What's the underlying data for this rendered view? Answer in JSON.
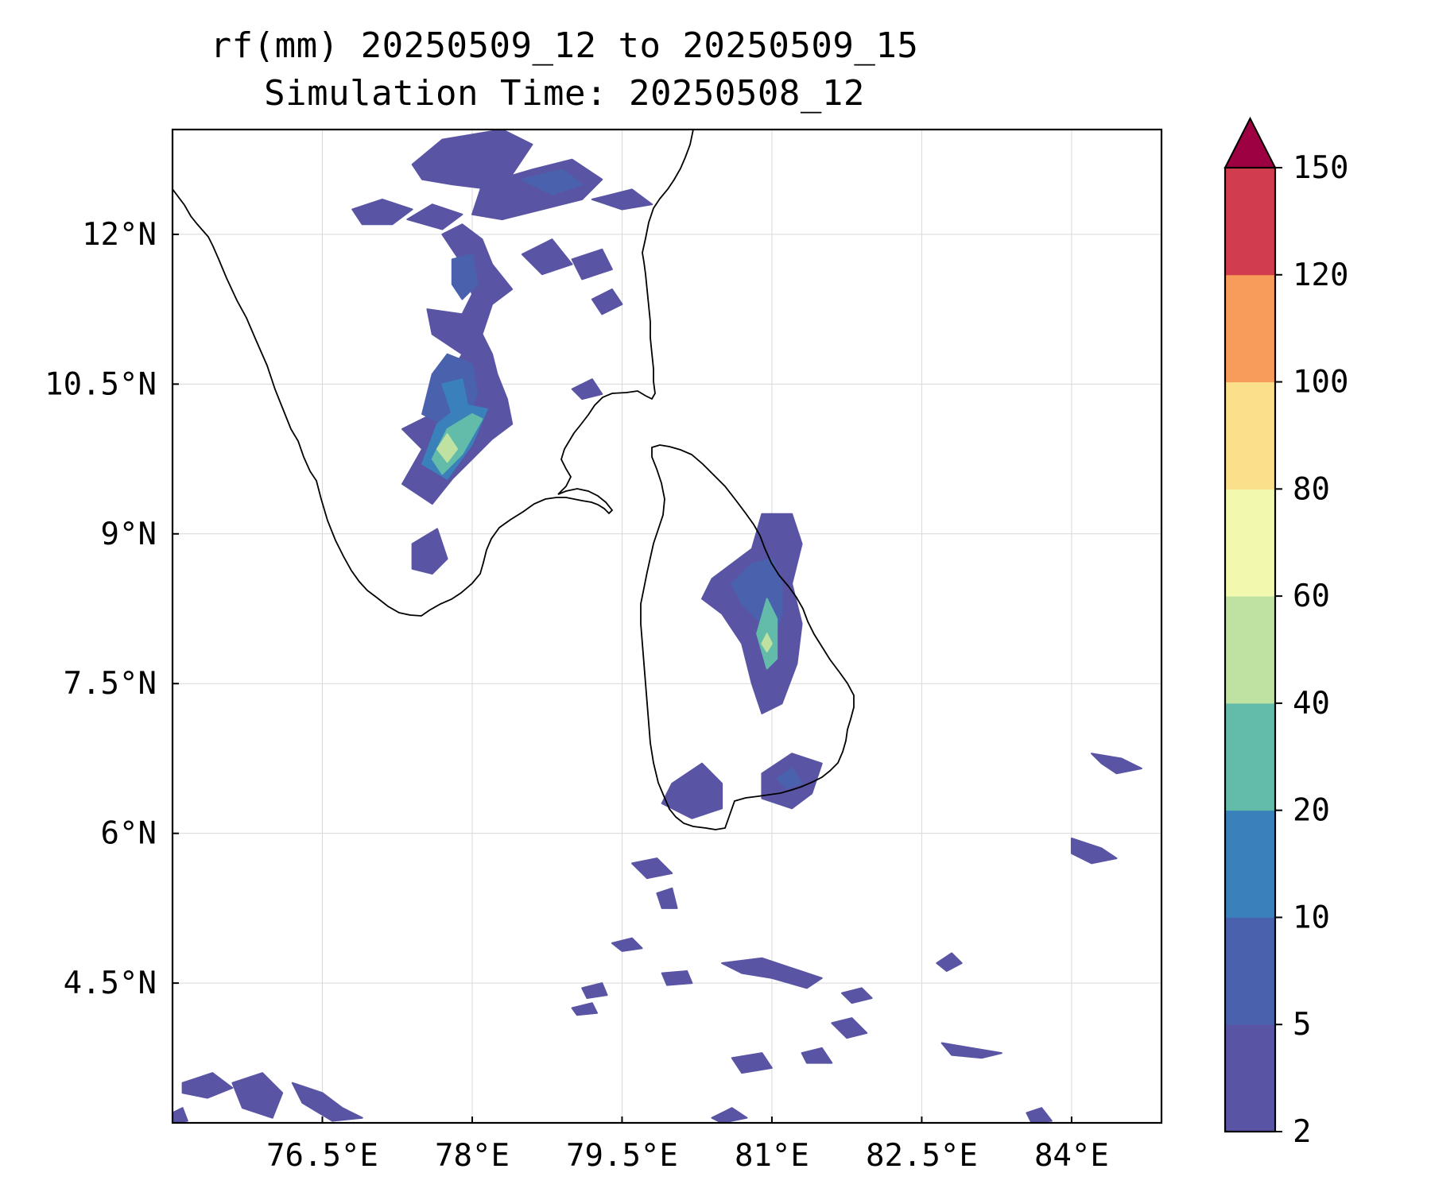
{
  "title": {
    "line1": "rf(mm) 20250509_12 to 20250509_15",
    "line2": "Simulation Time: 20250508_12"
  },
  "map": {
    "lon_range": [
      75.0,
      84.9
    ],
    "lat_range": [
      3.1,
      13.05
    ],
    "lon_ticks": [
      {
        "value": 76.5,
        "label": "76.5°E"
      },
      {
        "value": 78.0,
        "label": "78°E"
      },
      {
        "value": 79.5,
        "label": "79.5°E"
      },
      {
        "value": 81.0,
        "label": "81°E"
      },
      {
        "value": 82.5,
        "label": "82.5°E"
      },
      {
        "value": 84.0,
        "label": "84°E"
      }
    ],
    "lat_ticks": [
      {
        "value": 12.0,
        "label": "12°N"
      },
      {
        "value": 10.5,
        "label": "10.5°N"
      },
      {
        "value": 9.0,
        "label": "9°N"
      },
      {
        "value": 7.5,
        "label": "7.5°N"
      },
      {
        "value": 6.0,
        "label": "6°N"
      },
      {
        "value": 4.5,
        "label": "4.5°N"
      }
    ],
    "gridlines": true,
    "coastline_color": "#000000"
  },
  "colorbar": {
    "levels": [
      2,
      5,
      10,
      20,
      40,
      60,
      80,
      100,
      120,
      150
    ],
    "labels": [
      "2",
      "5",
      "10",
      "20",
      "40",
      "60",
      "80",
      "100",
      "120",
      "150"
    ],
    "colors": [
      "#5954a4",
      "#4a62ad",
      "#3a80ba",
      "#63bca9",
      "#bfe1a2",
      "#f2f8ae",
      "#fbdf8b",
      "#f89c5b",
      "#d23c4f"
    ],
    "extend_color": "#9e0142",
    "extend": "max"
  },
  "rain_cells": [
    {
      "level": 0,
      "points": [
        [
          77.4,
          12.7
        ],
        [
          77.7,
          12.95
        ],
        [
          78.3,
          13.05
        ],
        [
          78.6,
          12.9
        ],
        [
          78.4,
          12.6
        ],
        [
          78.2,
          12.45
        ],
        [
          77.8,
          12.5
        ],
        [
          77.5,
          12.55
        ]
      ]
    },
    {
      "level": 0,
      "points": [
        [
          78.1,
          12.5
        ],
        [
          78.6,
          12.65
        ],
        [
          79.0,
          12.75
        ],
        [
          79.3,
          12.55
        ],
        [
          79.1,
          12.35
        ],
        [
          78.7,
          12.25
        ],
        [
          78.3,
          12.15
        ],
        [
          78.0,
          12.2
        ]
      ]
    },
    {
      "level": 1,
      "points": [
        [
          78.5,
          12.55
        ],
        [
          78.9,
          12.65
        ],
        [
          79.1,
          12.5
        ],
        [
          78.8,
          12.4
        ]
      ]
    },
    {
      "level": 0,
      "points": [
        [
          76.8,
          12.25
        ],
        [
          77.1,
          12.35
        ],
        [
          77.4,
          12.25
        ],
        [
          77.2,
          12.1
        ],
        [
          76.9,
          12.1
        ]
      ]
    },
    {
      "level": 0,
      "points": [
        [
          77.35,
          12.15
        ],
        [
          77.6,
          12.3
        ],
        [
          77.9,
          12.2
        ],
        [
          77.7,
          12.05
        ]
      ]
    },
    {
      "level": 0,
      "points": [
        [
          79.2,
          12.35
        ],
        [
          79.6,
          12.45
        ],
        [
          79.8,
          12.3
        ],
        [
          79.5,
          12.25
        ]
      ]
    },
    {
      "level": 0,
      "points": [
        [
          78.5,
          11.8
        ],
        [
          78.8,
          11.95
        ],
        [
          79.0,
          11.7
        ],
        [
          78.7,
          11.6
        ]
      ]
    },
    {
      "level": 0,
      "points": [
        [
          79.0,
          11.75
        ],
        [
          79.3,
          11.85
        ],
        [
          79.4,
          11.65
        ],
        [
          79.1,
          11.55
        ]
      ]
    },
    {
      "level": 0,
      "points": [
        [
          79.2,
          11.35
        ],
        [
          79.4,
          11.45
        ],
        [
          79.5,
          11.3
        ],
        [
          79.3,
          11.2
        ]
      ]
    },
    {
      "level": 0,
      "points": [
        [
          79.0,
          10.45
        ],
        [
          79.2,
          10.55
        ],
        [
          79.3,
          10.4
        ],
        [
          79.1,
          10.35
        ]
      ]
    },
    {
      "level": 0,
      "points": [
        [
          77.7,
          12.0
        ],
        [
          77.9,
          11.7
        ],
        [
          78.0,
          11.4
        ],
        [
          77.9,
          11.2
        ],
        [
          77.55,
          11.25
        ],
        [
          77.6,
          11.0
        ],
        [
          77.9,
          10.8
        ],
        [
          77.75,
          10.55
        ],
        [
          77.6,
          10.2
        ],
        [
          77.3,
          10.05
        ],
        [
          77.5,
          9.85
        ],
        [
          77.3,
          9.5
        ],
        [
          77.6,
          9.3
        ],
        [
          77.8,
          9.55
        ],
        [
          78.0,
          9.75
        ],
        [
          78.2,
          9.95
        ],
        [
          78.4,
          10.1
        ],
        [
          78.35,
          10.35
        ],
        [
          78.25,
          10.6
        ],
        [
          78.2,
          10.8
        ],
        [
          78.1,
          11.0
        ],
        [
          78.2,
          11.3
        ],
        [
          78.4,
          11.45
        ],
        [
          78.2,
          11.7
        ],
        [
          78.1,
          11.95
        ],
        [
          77.9,
          12.1
        ]
      ]
    },
    {
      "level": 1,
      "points": [
        [
          77.8,
          11.75
        ],
        [
          78.0,
          11.8
        ],
        [
          78.05,
          11.5
        ],
        [
          77.9,
          11.35
        ],
        [
          77.8,
          11.5
        ]
      ]
    },
    {
      "level": 1,
      "points": [
        [
          77.6,
          10.6
        ],
        [
          77.75,
          10.8
        ],
        [
          78.0,
          10.7
        ],
        [
          78.05,
          10.4
        ],
        [
          77.95,
          10.15
        ],
        [
          77.7,
          10.1
        ],
        [
          77.5,
          10.2
        ]
      ]
    },
    {
      "level": 2,
      "points": [
        [
          77.7,
          10.5
        ],
        [
          77.9,
          10.55
        ],
        [
          77.95,
          10.3
        ],
        [
          77.8,
          10.2
        ]
      ]
    },
    {
      "level": 2,
      "points": [
        [
          77.5,
          9.7
        ],
        [
          77.65,
          10.1
        ],
        [
          77.9,
          10.3
        ],
        [
          78.15,
          10.25
        ],
        [
          78.0,
          9.9
        ],
        [
          77.75,
          9.55
        ]
      ]
    },
    {
      "level": 3,
      "points": [
        [
          77.6,
          9.75
        ],
        [
          77.75,
          10.05
        ],
        [
          78.0,
          10.2
        ],
        [
          78.1,
          10.15
        ],
        [
          77.9,
          9.8
        ],
        [
          77.7,
          9.6
        ]
      ]
    },
    {
      "level": 4,
      "points": [
        [
          77.65,
          9.85
        ],
        [
          77.75,
          10.0
        ],
        [
          77.85,
          9.85
        ],
        [
          77.75,
          9.72
        ]
      ]
    },
    {
      "level": 0,
      "points": [
        [
          77.4,
          8.9
        ],
        [
          77.65,
          9.05
        ],
        [
          77.75,
          8.75
        ],
        [
          77.6,
          8.6
        ],
        [
          77.4,
          8.65
        ]
      ]
    },
    {
      "level": 0,
      "points": [
        [
          80.4,
          8.55
        ],
        [
          80.8,
          8.85
        ],
        [
          80.9,
          9.2
        ],
        [
          81.2,
          9.2
        ],
        [
          81.3,
          8.9
        ],
        [
          81.2,
          8.5
        ],
        [
          81.3,
          8.1
        ],
        [
          81.25,
          7.7
        ],
        [
          81.1,
          7.3
        ],
        [
          80.9,
          7.2
        ],
        [
          80.8,
          7.5
        ],
        [
          80.7,
          7.9
        ],
        [
          80.5,
          8.2
        ],
        [
          80.3,
          8.35
        ]
      ]
    },
    {
      "level": 1,
      "points": [
        [
          80.6,
          8.5
        ],
        [
          80.8,
          8.7
        ],
        [
          81.0,
          8.75
        ],
        [
          81.1,
          8.5
        ],
        [
          81.1,
          8.2
        ],
        [
          81.0,
          7.9
        ],
        [
          80.9,
          8.1
        ],
        [
          80.7,
          8.3
        ]
      ]
    },
    {
      "level": 3,
      "points": [
        [
          80.85,
          8.0
        ],
        [
          80.95,
          8.35
        ],
        [
          81.05,
          8.15
        ],
        [
          81.05,
          7.75
        ],
        [
          80.95,
          7.65
        ]
      ]
    },
    {
      "level": 4,
      "points": [
        [
          80.9,
          7.9
        ],
        [
          80.95,
          8.0
        ],
        [
          81.0,
          7.9
        ],
        [
          80.95,
          7.82
        ]
      ]
    },
    {
      "level": 0,
      "points": [
        [
          80.9,
          6.6
        ],
        [
          81.2,
          6.8
        ],
        [
          81.5,
          6.7
        ],
        [
          81.4,
          6.4
        ],
        [
          81.2,
          6.25
        ],
        [
          80.9,
          6.35
        ]
      ]
    },
    {
      "level": 1,
      "points": [
        [
          81.05,
          6.55
        ],
        [
          81.2,
          6.65
        ],
        [
          81.3,
          6.5
        ],
        [
          81.15,
          6.45
        ]
      ]
    },
    {
      "level": 0,
      "points": [
        [
          80.0,
          6.5
        ],
        [
          80.3,
          6.7
        ],
        [
          80.5,
          6.5
        ],
        [
          80.5,
          6.25
        ],
        [
          80.2,
          6.15
        ],
        [
          79.9,
          6.3
        ]
      ]
    },
    {
      "level": 0,
      "points": [
        [
          84.2,
          6.8
        ],
        [
          84.5,
          6.75
        ],
        [
          84.7,
          6.65
        ],
        [
          84.45,
          6.6
        ],
        [
          84.3,
          6.7
        ]
      ]
    },
    {
      "level": 0,
      "points": [
        [
          84.0,
          5.95
        ],
        [
          84.3,
          5.85
        ],
        [
          84.45,
          5.75
        ],
        [
          84.2,
          5.7
        ],
        [
          84.0,
          5.8
        ]
      ]
    },
    {
      "level": 0,
      "points": [
        [
          79.6,
          5.7
        ],
        [
          79.85,
          5.75
        ],
        [
          80.0,
          5.6
        ],
        [
          79.75,
          5.55
        ]
      ]
    },
    {
      "level": 0,
      "points": [
        [
          79.85,
          5.4
        ],
        [
          80.0,
          5.45
        ],
        [
          80.05,
          5.25
        ],
        [
          79.9,
          5.25
        ]
      ]
    },
    {
      "level": 0,
      "points": [
        [
          79.4,
          4.9
        ],
        [
          79.6,
          4.95
        ],
        [
          79.7,
          4.85
        ],
        [
          79.5,
          4.82
        ]
      ]
    },
    {
      "level": 0,
      "points": [
        [
          80.5,
          4.7
        ],
        [
          80.9,
          4.75
        ],
        [
          81.2,
          4.65
        ],
        [
          81.5,
          4.55
        ],
        [
          81.35,
          4.45
        ],
        [
          81.0,
          4.55
        ],
        [
          80.7,
          4.6
        ]
      ]
    },
    {
      "level": 0,
      "points": [
        [
          81.7,
          4.4
        ],
        [
          81.9,
          4.45
        ],
        [
          82.0,
          4.35
        ],
        [
          81.8,
          4.3
        ]
      ]
    },
    {
      "level": 0,
      "points": [
        [
          82.65,
          4.7
        ],
        [
          82.8,
          4.8
        ],
        [
          82.9,
          4.7
        ],
        [
          82.75,
          4.62
        ]
      ]
    },
    {
      "level": 0,
      "points": [
        [
          79.9,
          4.6
        ],
        [
          80.15,
          4.62
        ],
        [
          80.2,
          4.5
        ],
        [
          79.95,
          4.48
        ]
      ]
    },
    {
      "level": 0,
      "points": [
        [
          79.1,
          4.45
        ],
        [
          79.3,
          4.5
        ],
        [
          79.35,
          4.38
        ],
        [
          79.15,
          4.35
        ]
      ]
    },
    {
      "level": 0,
      "points": [
        [
          79.0,
          4.25
        ],
        [
          79.2,
          4.3
        ],
        [
          79.25,
          4.2
        ],
        [
          79.05,
          4.18
        ]
      ]
    },
    {
      "level": 0,
      "points": [
        [
          80.6,
          3.75
        ],
        [
          80.9,
          3.8
        ],
        [
          81.0,
          3.65
        ],
        [
          80.7,
          3.6
        ]
      ]
    },
    {
      "level": 0,
      "points": [
        [
          81.3,
          3.8
        ],
        [
          81.5,
          3.85
        ],
        [
          81.6,
          3.7
        ],
        [
          81.35,
          3.7
        ]
      ]
    },
    {
      "level": 0,
      "points": [
        [
          82.7,
          3.9
        ],
        [
          83.0,
          3.85
        ],
        [
          83.3,
          3.8
        ],
        [
          83.1,
          3.75
        ],
        [
          82.8,
          3.78
        ]
      ]
    },
    {
      "level": 0,
      "points": [
        [
          81.6,
          4.1
        ],
        [
          81.8,
          4.15
        ],
        [
          81.95,
          4.0
        ],
        [
          81.75,
          3.95
        ]
      ]
    },
    {
      "level": 0,
      "points": [
        [
          75.1,
          3.5
        ],
        [
          75.4,
          3.6
        ],
        [
          75.6,
          3.45
        ],
        [
          75.35,
          3.35
        ],
        [
          75.1,
          3.4
        ]
      ]
    },
    {
      "level": 0,
      "points": [
        [
          75.6,
          3.5
        ],
        [
          75.9,
          3.6
        ],
        [
          76.1,
          3.4
        ],
        [
          76.0,
          3.15
        ],
        [
          75.7,
          3.25
        ]
      ]
    },
    {
      "level": 0,
      "points": [
        [
          76.2,
          3.5
        ],
        [
          76.5,
          3.4
        ],
        [
          76.7,
          3.25
        ],
        [
          76.9,
          3.15
        ],
        [
          76.6,
          3.12
        ],
        [
          76.3,
          3.3
        ]
      ]
    },
    {
      "level": 0,
      "points": [
        [
          80.4,
          3.15
        ],
        [
          80.6,
          3.25
        ],
        [
          80.75,
          3.15
        ],
        [
          80.5,
          3.1
        ]
      ]
    },
    {
      "level": 0,
      "points": [
        [
          83.55,
          3.2
        ],
        [
          83.7,
          3.25
        ],
        [
          83.8,
          3.12
        ],
        [
          83.6,
          3.1
        ]
      ]
    },
    {
      "level": 0,
      "points": [
        [
          75.0,
          3.2
        ],
        [
          75.1,
          3.25
        ],
        [
          75.15,
          3.12
        ],
        [
          75.0,
          3.1
        ]
      ]
    }
  ]
}
